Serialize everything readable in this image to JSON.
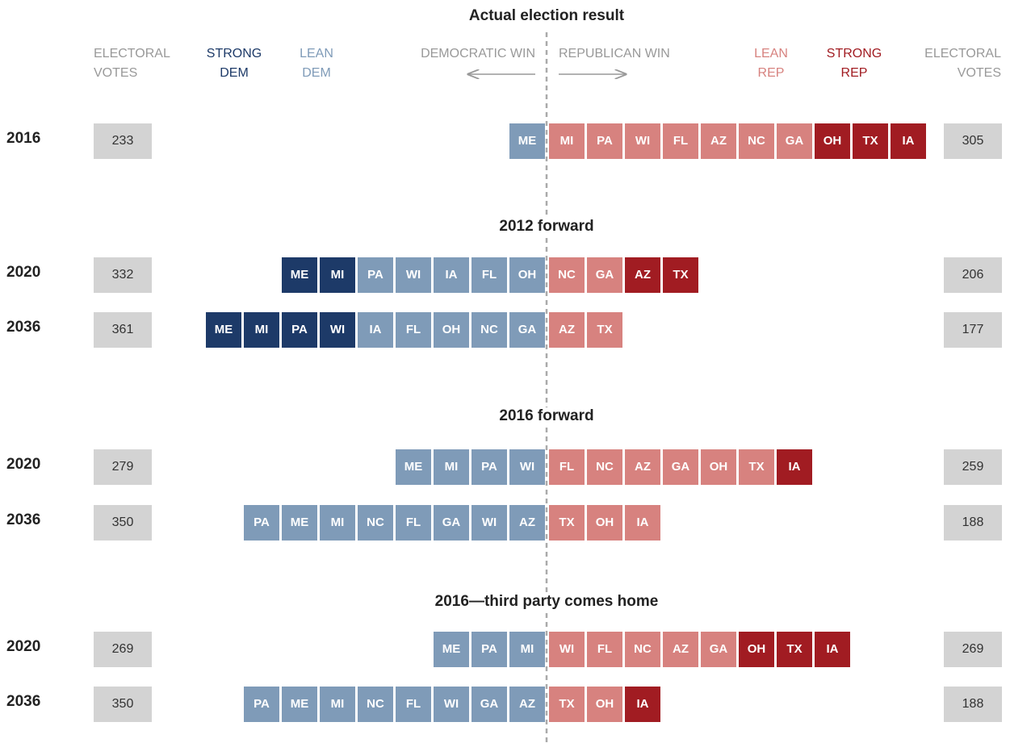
{
  "legend": {
    "ev_left": [
      "ELECTORAL",
      "VOTES"
    ],
    "strong_dem": [
      "STRONG",
      "DEM"
    ],
    "lean_dem": [
      "LEAN",
      "DEM"
    ],
    "dem_win": "DEMOCRATIC WIN",
    "rep_win": "REPUBLICAN WIN",
    "lean_rep": [
      "LEAN",
      "REP"
    ],
    "strong_rep": [
      "STRONG",
      "REP"
    ],
    "ev_right": [
      "ELECTORAL",
      "VOTES"
    ]
  },
  "colors": {
    "strong_dem": "#1d3a68",
    "lean_dem": "#7f9bb8",
    "lean_rep": "#d7827f",
    "strong_rep": "#a11c22"
  },
  "sections": [
    {
      "title": "Actual election result",
      "rows": [
        {
          "year": "2016",
          "dem_ev": 233,
          "rep_ev": 305,
          "dem": [
            {
              "state": "ME",
              "tier": "lean_dem"
            }
          ],
          "rep": [
            {
              "state": "MI",
              "tier": "lean_rep"
            },
            {
              "state": "PA",
              "tier": "lean_rep"
            },
            {
              "state": "WI",
              "tier": "lean_rep"
            },
            {
              "state": "FL",
              "tier": "lean_rep"
            },
            {
              "state": "AZ",
              "tier": "lean_rep"
            },
            {
              "state": "NC",
              "tier": "lean_rep"
            },
            {
              "state": "GA",
              "tier": "lean_rep"
            },
            {
              "state": "OH",
              "tier": "strong_rep"
            },
            {
              "state": "TX",
              "tier": "strong_rep"
            },
            {
              "state": "IA",
              "tier": "strong_rep"
            }
          ]
        }
      ]
    },
    {
      "title": "2012 forward",
      "rows": [
        {
          "year": "2020",
          "dem_ev": 332,
          "rep_ev": 206,
          "dem": [
            {
              "state": "ME",
              "tier": "strong_dem"
            },
            {
              "state": "MI",
              "tier": "strong_dem"
            },
            {
              "state": "PA",
              "tier": "lean_dem"
            },
            {
              "state": "WI",
              "tier": "lean_dem"
            },
            {
              "state": "IA",
              "tier": "lean_dem"
            },
            {
              "state": "FL",
              "tier": "lean_dem"
            },
            {
              "state": "OH",
              "tier": "lean_dem"
            }
          ],
          "rep": [
            {
              "state": "NC",
              "tier": "lean_rep"
            },
            {
              "state": "GA",
              "tier": "lean_rep"
            },
            {
              "state": "AZ",
              "tier": "strong_rep"
            },
            {
              "state": "TX",
              "tier": "strong_rep"
            }
          ]
        },
        {
          "year": "2036",
          "dem_ev": 361,
          "rep_ev": 177,
          "dem": [
            {
              "state": "ME",
              "tier": "strong_dem"
            },
            {
              "state": "MI",
              "tier": "strong_dem"
            },
            {
              "state": "PA",
              "tier": "strong_dem"
            },
            {
              "state": "WI",
              "tier": "strong_dem"
            },
            {
              "state": "IA",
              "tier": "lean_dem"
            },
            {
              "state": "FL",
              "tier": "lean_dem"
            },
            {
              "state": "OH",
              "tier": "lean_dem"
            },
            {
              "state": "NC",
              "tier": "lean_dem"
            },
            {
              "state": "GA",
              "tier": "lean_dem"
            }
          ],
          "rep": [
            {
              "state": "AZ",
              "tier": "lean_rep"
            },
            {
              "state": "TX",
              "tier": "lean_rep"
            }
          ]
        }
      ]
    },
    {
      "title": "2016 forward",
      "rows": [
        {
          "year": "2020",
          "dem_ev": 279,
          "rep_ev": 259,
          "dem": [
            {
              "state": "ME",
              "tier": "lean_dem"
            },
            {
              "state": "MI",
              "tier": "lean_dem"
            },
            {
              "state": "PA",
              "tier": "lean_dem"
            },
            {
              "state": "WI",
              "tier": "lean_dem"
            }
          ],
          "rep": [
            {
              "state": "FL",
              "tier": "lean_rep"
            },
            {
              "state": "NC",
              "tier": "lean_rep"
            },
            {
              "state": "AZ",
              "tier": "lean_rep"
            },
            {
              "state": "GA",
              "tier": "lean_rep"
            },
            {
              "state": "OH",
              "tier": "lean_rep"
            },
            {
              "state": "TX",
              "tier": "lean_rep"
            },
            {
              "state": "IA",
              "tier": "strong_rep"
            }
          ]
        },
        {
          "year": "2036",
          "dem_ev": 350,
          "rep_ev": 188,
          "dem": [
            {
              "state": "PA",
              "tier": "lean_dem"
            },
            {
              "state": "ME",
              "tier": "lean_dem"
            },
            {
              "state": "MI",
              "tier": "lean_dem"
            },
            {
              "state": "NC",
              "tier": "lean_dem"
            },
            {
              "state": "FL",
              "tier": "lean_dem"
            },
            {
              "state": "GA",
              "tier": "lean_dem"
            },
            {
              "state": "WI",
              "tier": "lean_dem"
            },
            {
              "state": "AZ",
              "tier": "lean_dem"
            }
          ],
          "rep": [
            {
              "state": "TX",
              "tier": "lean_rep"
            },
            {
              "state": "OH",
              "tier": "lean_rep"
            },
            {
              "state": "IA",
              "tier": "lean_rep"
            }
          ]
        }
      ]
    },
    {
      "title": "2016—third party comes home",
      "rows": [
        {
          "year": "2020",
          "dem_ev": 269,
          "rep_ev": 269,
          "dem": [
            {
              "state": "ME",
              "tier": "lean_dem"
            },
            {
              "state": "PA",
              "tier": "lean_dem"
            },
            {
              "state": "MI",
              "tier": "lean_dem"
            }
          ],
          "rep": [
            {
              "state": "WI",
              "tier": "lean_rep"
            },
            {
              "state": "FL",
              "tier": "lean_rep"
            },
            {
              "state": "NC",
              "tier": "lean_rep"
            },
            {
              "state": "AZ",
              "tier": "lean_rep"
            },
            {
              "state": "GA",
              "tier": "lean_rep"
            },
            {
              "state": "OH",
              "tier": "strong_rep"
            },
            {
              "state": "TX",
              "tier": "strong_rep"
            },
            {
              "state": "IA",
              "tier": "strong_rep"
            }
          ]
        },
        {
          "year": "2036",
          "dem_ev": 350,
          "rep_ev": 188,
          "dem": [
            {
              "state": "PA",
              "tier": "lean_dem"
            },
            {
              "state": "ME",
              "tier": "lean_dem"
            },
            {
              "state": "MI",
              "tier": "lean_dem"
            },
            {
              "state": "NC",
              "tier": "lean_dem"
            },
            {
              "state": "FL",
              "tier": "lean_dem"
            },
            {
              "state": "WI",
              "tier": "lean_dem"
            },
            {
              "state": "GA",
              "tier": "lean_dem"
            },
            {
              "state": "AZ",
              "tier": "lean_dem"
            }
          ],
          "rep": [
            {
              "state": "TX",
              "tier": "lean_rep"
            },
            {
              "state": "OH",
              "tier": "lean_rep"
            },
            {
              "state": "IA",
              "tier": "strong_rep"
            }
          ]
        }
      ]
    }
  ]
}
